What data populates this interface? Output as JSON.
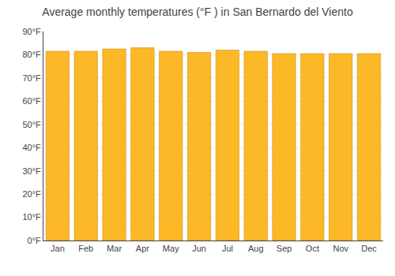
{
  "chart_data": {
    "type": "bar",
    "title": "Average monthly temperatures (°F ) in San Bernardo del Viento",
    "categories": [
      "Jan",
      "Feb",
      "Mar",
      "Apr",
      "May",
      "Jun",
      "Jul",
      "Aug",
      "Sep",
      "Oct",
      "Nov",
      "Dec"
    ],
    "values": [
      81.5,
      81.5,
      82.5,
      83.0,
      81.5,
      81.0,
      82.0,
      81.5,
      80.5,
      80.5,
      80.5,
      80.5
    ],
    "color": "#FDB827",
    "ylim": [
      0,
      90
    ],
    "yticks": [
      {
        "value": 0,
        "label": "0°F"
      },
      {
        "value": 10,
        "label": "10°F"
      },
      {
        "value": 20,
        "label": "20°F"
      },
      {
        "value": 30,
        "label": "30°F"
      },
      {
        "value": 40,
        "label": "40°F"
      },
      {
        "value": 50,
        "label": "50°F"
      },
      {
        "value": 60,
        "label": "60°F"
      },
      {
        "value": 70,
        "label": "70°F"
      },
      {
        "value": 80,
        "label": "80°F"
      },
      {
        "value": 90,
        "label": "90°F"
      }
    ],
    "grid": true
  }
}
